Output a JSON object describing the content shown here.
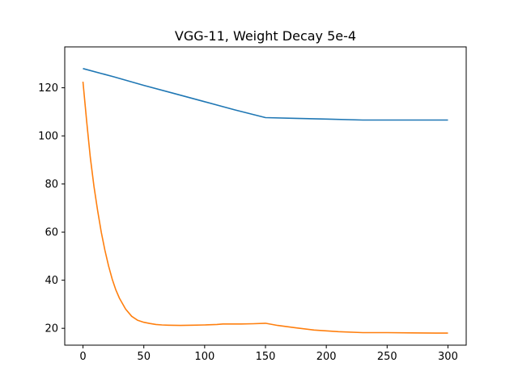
{
  "chart_data": {
    "type": "line",
    "title": "VGG-11, Weight Decay 5e-4",
    "xlabel": "",
    "ylabel": "",
    "xlim": [
      -15,
      315
    ],
    "ylim": [
      13,
      137
    ],
    "xticks": [
      0,
      50,
      100,
      150,
      200,
      250,
      300
    ],
    "yticks": [
      20,
      40,
      60,
      80,
      100,
      120
    ],
    "grid": false,
    "legend": "none",
    "series": [
      {
        "color": "#1f77b4",
        "x": [
          0,
          25,
          50,
          75,
          100,
          125,
          150,
          175,
          200,
          230,
          260,
          300
        ],
        "y": [
          128,
          124.6,
          121,
          117.6,
          114.2,
          110.8,
          107.6,
          107.3,
          107,
          106.6,
          106.6,
          106.6
        ]
      },
      {
        "color": "#ff7f0e",
        "x": [
          0,
          3,
          6,
          9,
          12,
          15,
          18,
          21,
          24,
          27,
          30,
          35,
          40,
          45,
          50,
          55,
          60,
          65,
          70,
          80,
          90,
          100,
          110,
          115,
          120,
          130,
          140,
          150,
          160,
          175,
          190,
          210,
          230,
          250,
          270,
          290,
          300
        ],
        "y": [
          122.5,
          106,
          91,
          79,
          69,
          60,
          52.5,
          46,
          40.5,
          36,
          32.5,
          28,
          25,
          23.3,
          22.5,
          22,
          21.6,
          21.4,
          21.3,
          21.2,
          21.3,
          21.4,
          21.6,
          21.8,
          21.8,
          21.8,
          21.9,
          22.1,
          21.2,
          20.2,
          19.3,
          18.6,
          18.2,
          18.2,
          18.1,
          18,
          18
        ]
      }
    ]
  }
}
